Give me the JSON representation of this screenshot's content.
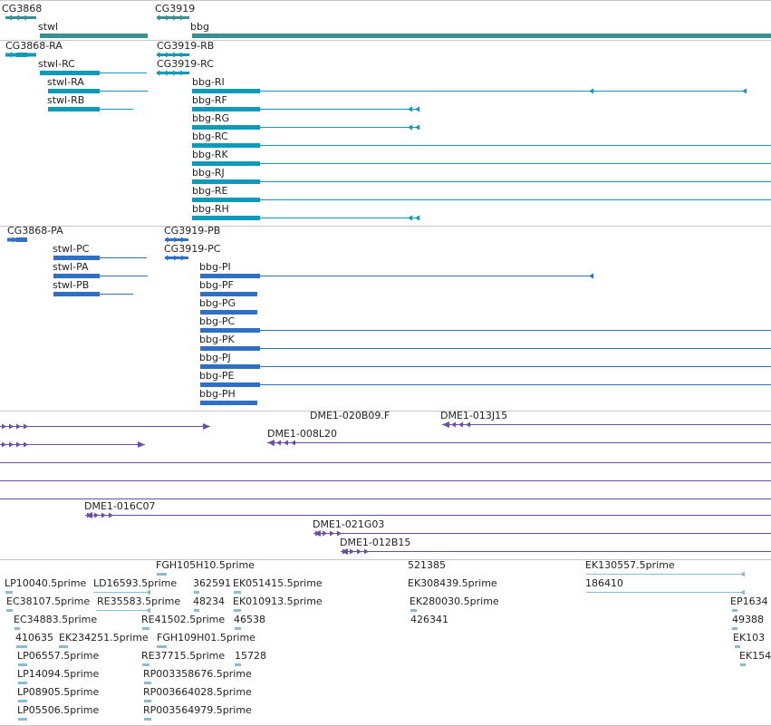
{
  "colors": {
    "gene": "#3a8f94",
    "transcript": "#0e9ab8",
    "protein": "#2f6fc6",
    "bac": "#6b4ea6",
    "est": "#86bcd6"
  },
  "tracks": [
    {
      "name": "genes",
      "color_key": "gene",
      "features": [
        {
          "label": "CG3868",
          "strand": "-",
          "segments": [
            {
              "x1": 6,
              "x2": 40,
              "h": 3
            }
          ]
        },
        {
          "label": "CG3919",
          "strand": "+",
          "segments": [
            {
              "x1": 173,
              "x2": 209,
              "h": 3
            }
          ]
        },
        {
          "label": "stwl",
          "strand": "+",
          "segments": [
            {
              "x1": 44,
              "x2": 163,
              "h": 5
            }
          ]
        },
        {
          "label": "bbg",
          "strand": "+",
          "segments": [
            {
              "x1": 212,
              "x2": 851,
              "h": 5
            }
          ]
        }
      ]
    },
    {
      "name": "transcripts",
      "color_key": "transcript",
      "features": [
        {
          "label": "CG3868-RA",
          "strand": "-",
          "segments": [
            {
              "x1": 6,
              "x2": 18,
              "h": 4
            },
            {
              "x1": 18,
              "x2": 30,
              "h": 5
            },
            {
              "x1": 30,
              "x2": 40,
              "h": 4
            }
          ]
        },
        {
          "label": "CG3919-RB",
          "strand": "+",
          "segments": [
            {
              "x1": 173,
              "x2": 209,
              "h": 3
            }
          ],
          "arrows": 4
        },
        {
          "label": "stwl-RC",
          "strand": "+",
          "segments": [
            {
              "x1": 44,
              "x2": 110,
              "h": 5
            },
            {
              "x1": 110,
              "x2": 162,
              "h": 1
            }
          ]
        },
        {
          "label": "CG3919-RC",
          "strand": "+",
          "segments": [
            {
              "x1": 173,
              "x2": 209,
              "h": 3
            }
          ],
          "arrows": 5
        },
        {
          "label": "stwl-RA",
          "strand": "+",
          "segments": [
            {
              "x1": 53,
              "x2": 110,
              "h": 5
            },
            {
              "x1": 110,
              "x2": 163,
              "h": 1
            }
          ]
        },
        {
          "label": "bbg-RI",
          "strand": "-",
          "segments": [
            {
              "x1": 212,
              "x2": 287,
              "h": 5
            },
            {
              "x1": 287,
              "x2": 820,
              "h": 1
            }
          ],
          "ticks": [
            650,
            819
          ]
        },
        {
          "label": "stwl-RB",
          "strand": "+",
          "segments": [
            {
              "x1": 53,
              "x2": 110,
              "h": 5
            },
            {
              "x1": 110,
              "x2": 147,
              "h": 1
            }
          ]
        },
        {
          "label": "bbg-RF",
          "strand": "-",
          "segments": [
            {
              "x1": 212,
              "x2": 287,
              "h": 5
            },
            {
              "x1": 287,
              "x2": 461,
              "h": 1
            }
          ],
          "ticks": [
            450,
            458
          ]
        },
        {
          "label": "bbg-RG",
          "strand": "-",
          "segments": [
            {
              "x1": 212,
              "x2": 287,
              "h": 5
            },
            {
              "x1": 287,
              "x2": 461,
              "h": 1
            }
          ],
          "ticks": [
            450,
            458
          ]
        },
        {
          "label": "bbg-RC",
          "strand": "-",
          "segments": [
            {
              "x1": 212,
              "x2": 287,
              "h": 5
            },
            {
              "x1": 287,
              "x2": 851,
              "h": 1
            }
          ]
        },
        {
          "label": "bbg-RK",
          "strand": "-",
          "segments": [
            {
              "x1": 212,
              "x2": 287,
              "h": 5
            },
            {
              "x1": 287,
              "x2": 851,
              "h": 1
            }
          ]
        },
        {
          "label": "bbg-RJ",
          "strand": "-",
          "segments": [
            {
              "x1": 212,
              "x2": 287,
              "h": 5
            },
            {
              "x1": 287,
              "x2": 851,
              "h": 1
            }
          ]
        },
        {
          "label": "bbg-RE",
          "strand": "-",
          "segments": [
            {
              "x1": 212,
              "x2": 287,
              "h": 5
            },
            {
              "x1": 287,
              "x2": 851,
              "h": 1
            }
          ]
        },
        {
          "label": "bbg-RH",
          "strand": "-",
          "segments": [
            {
              "x1": 212,
              "x2": 287,
              "h": 5
            },
            {
              "x1": 287,
              "x2": 461,
              "h": 1
            }
          ],
          "ticks": [
            450,
            458
          ]
        }
      ]
    },
    {
      "name": "proteins",
      "color_key": "protein",
      "features": [
        {
          "label": "CG3868-PA",
          "strand": "-",
          "segments": [
            {
              "x1": 8,
              "x2": 18,
              "h": 4
            },
            {
              "x1": 18,
              "x2": 30,
              "h": 5
            }
          ]
        },
        {
          "label": "CG3919-PB",
          "strand": "+",
          "segments": [
            {
              "x1": 182,
              "x2": 208,
              "h": 3
            }
          ],
          "arrows": 3
        },
        {
          "label": "stwl-PC",
          "strand": "+",
          "segments": [
            {
              "x1": 59,
              "x2": 110,
              "h": 5
            },
            {
              "x1": 110,
              "x2": 162,
              "h": 1
            }
          ]
        },
        {
          "label": "CG3919-PC",
          "strand": "+",
          "segments": [
            {
              "x1": 182,
              "x2": 208,
              "h": 3
            }
          ],
          "arrows": 4
        },
        {
          "label": "stwl-PA",
          "strand": "+",
          "segments": [
            {
              "x1": 59,
              "x2": 110,
              "h": 5
            },
            {
              "x1": 110,
              "x2": 163,
              "h": 1
            }
          ]
        },
        {
          "label": "bbg-PI",
          "strand": "-",
          "segments": [
            {
              "x1": 221,
              "x2": 287,
              "h": 5
            },
            {
              "x1": 287,
              "x2": 651,
              "h": 1
            }
          ],
          "ticks": [
            650
          ]
        },
        {
          "label": "stwl-PB",
          "strand": "+",
          "segments": [
            {
              "x1": 59,
              "x2": 110,
              "h": 5
            },
            {
              "x1": 110,
              "x2": 147,
              "h": 1
            }
          ]
        },
        {
          "label": "bbg-PF",
          "strand": "-",
          "segments": [
            {
              "x1": 221,
              "x2": 284,
              "h": 5
            }
          ]
        },
        {
          "label": "bbg-PG",
          "strand": "-",
          "segments": [
            {
              "x1": 221,
              "x2": 284,
              "h": 5
            }
          ]
        },
        {
          "label": "bbg-PC",
          "strand": "-",
          "segments": [
            {
              "x1": 221,
              "x2": 287,
              "h": 5
            },
            {
              "x1": 287,
              "x2": 851,
              "h": 1
            }
          ]
        },
        {
          "label": "bbg-PK",
          "strand": "-",
          "segments": [
            {
              "x1": 221,
              "x2": 287,
              "h": 5
            },
            {
              "x1": 287,
              "x2": 851,
              "h": 1
            }
          ]
        },
        {
          "label": "bbg-PJ",
          "strand": "-",
          "segments": [
            {
              "x1": 221,
              "x2": 287,
              "h": 5
            },
            {
              "x1": 287,
              "x2": 851,
              "h": 1
            }
          ]
        },
        {
          "label": "bbg-PE",
          "strand": "-",
          "segments": [
            {
              "x1": 221,
              "x2": 287,
              "h": 5
            },
            {
              "x1": 287,
              "x2": 851,
              "h": 1
            }
          ]
        },
        {
          "label": "bbg-PH",
          "strand": "-",
          "segments": [
            {
              "x1": 221,
              "x2": 284,
              "h": 5
            }
          ]
        }
      ]
    },
    {
      "name": "bac-clones",
      "color_key": "bac",
      "features": [
        {
          "label": "",
          "strand": "+",
          "segments": [
            {
              "x1": 0,
              "x2": 232,
              "h": 1
            }
          ],
          "end": "right"
        },
        {
          "label": "DME1-020B09.F",
          "strand": "",
          "segments": []
        },
        {
          "label": "DME1-013J15",
          "strand": "-",
          "segments": [
            {
              "x1": 488,
              "x2": 851,
              "h": 1
            }
          ],
          "end": "left"
        },
        {
          "label": "",
          "strand": "+",
          "segments": [
            {
              "x1": 0,
              "x2": 160,
              "h": 1
            }
          ],
          "end": "right"
        },
        {
          "label": "DME1-008L20",
          "strand": "-",
          "segments": [
            {
              "x1": 295,
              "x2": 851,
              "h": 1
            }
          ],
          "end": "left"
        },
        {
          "label": "",
          "strand": "",
          "segments": [
            {
              "x1": 0,
              "x2": 851,
              "h": 1
            }
          ]
        },
        {
          "label": "",
          "strand": "",
          "segments": [
            {
              "x1": 0,
              "x2": 851,
              "h": 1
            }
          ]
        },
        {
          "label": "",
          "strand": "",
          "segments": [
            {
              "x1": 0,
              "x2": 851,
              "h": 1
            }
          ]
        },
        {
          "label": "DME1-016C07",
          "strand": "+",
          "segments": [
            {
              "x1": 94,
              "x2": 851,
              "h": 1
            }
          ],
          "end": "left"
        },
        {
          "label": "DME1-021G03",
          "strand": "+",
          "segments": [
            {
              "x1": 346,
              "x2": 851,
              "h": 1
            }
          ],
          "end": "left"
        },
        {
          "label": "DME1-012B15",
          "strand": "+",
          "segments": [
            {
              "x1": 376,
              "x2": 851,
              "h": 1
            }
          ],
          "end": "left"
        }
      ]
    },
    {
      "name": "ests",
      "color_key": "est",
      "features": [
        {
          "label": "FGH105H10.5prime",
          "strand": "",
          "segments": [
            {
              "x1": 173,
              "x2": 184,
              "h": 3
            }
          ]
        },
        {
          "label": "521385",
          "strand": "",
          "segments": []
        },
        {
          "label": "EK130557.5prime",
          "strand": "",
          "segments": [
            {
              "x1": 647,
              "x2": 820,
              "h": 1
            }
          ],
          "ticks": [
            817
          ]
        },
        {
          "label": "LP10040.5prime",
          "strand": "",
          "segments": [
            {
              "x1": 6,
              "x2": 14,
              "h": 3
            }
          ]
        },
        {
          "label": "LD16593.5prime",
          "strand": "",
          "segments": [
            {
              "x1": 103,
              "x2": 165,
              "h": 1
            }
          ],
          "ticks": [
            161
          ]
        },
        {
          "label": "362591",
          "strand": "",
          "segments": [
            {
              "x1": 214,
              "x2": 220,
              "h": 3
            }
          ]
        },
        {
          "label": "EK051415.5prime",
          "strand": "",
          "segments": [
            {
              "x1": 258,
              "x2": 266,
              "h": 3
            }
          ]
        },
        {
          "label": "EK308439.5prime",
          "strand": "",
          "segments": []
        },
        {
          "label": "186410",
          "strand": "",
          "segments": [
            {
              "x1": 647,
              "x2": 820,
              "h": 1
            }
          ],
          "ticks": [
            817
          ]
        },
        {
          "label": "EC38107.5prime",
          "strand": "",
          "segments": [
            {
              "x1": 7,
              "x2": 14,
              "h": 3
            }
          ]
        },
        {
          "label": "RE35583.5prime",
          "strand": "",
          "segments": [
            {
              "x1": 106,
              "x2": 165,
              "h": 1
            }
          ],
          "ticks": [
            161
          ]
        },
        {
          "label": "48234",
          "strand": "",
          "segments": [
            {
              "x1": 214,
              "x2": 220,
              "h": 3
            }
          ]
        },
        {
          "label": "EK010913.5prime",
          "strand": "",
          "segments": [
            {
              "x1": 258,
              "x2": 266,
              "h": 3
            }
          ]
        },
        {
          "label": "EK280030.5prime",
          "strand": "",
          "segments": [
            {
              "x1": 453,
              "x2": 460,
              "h": 3
            }
          ]
        },
        {
          "label": "EP1634",
          "strand": "",
          "segments": [
            {
              "x1": 808,
              "x2": 814,
              "h": 3
            }
          ]
        },
        {
          "label": "EC34883.5prime",
          "strand": "",
          "segments": [
            {
              "x1": 16,
              "x2": 22,
              "h": 3
            }
          ]
        },
        {
          "label": "RE41502.5prime",
          "strand": "",
          "segments": [
            {
              "x1": 157,
              "x2": 165,
              "h": 3
            }
          ]
        },
        {
          "label": "46538",
          "strand": "",
          "segments": [
            {
              "x1": 259,
              "x2": 266,
              "h": 3
            }
          ]
        },
        {
          "label": "426341",
          "strand": "",
          "segments": []
        },
        {
          "label": "49388",
          "strand": "",
          "segments": [
            {
              "x1": 808,
              "x2": 814,
              "h": 3
            }
          ]
        },
        {
          "label": "410635",
          "strand": "",
          "segments": [
            {
              "x1": 18,
              "x2": 30,
              "h": 3
            }
          ]
        },
        {
          "label": "EK234251.5prime",
          "strand": "",
          "segments": [
            {
              "x1": 65,
              "x2": 75,
              "h": 3
            }
          ]
        },
        {
          "label": "FGH109H01.5prime",
          "strand": "",
          "segments": [
            {
              "x1": 173,
              "x2": 184,
              "h": 3
            }
          ]
        },
        {
          "label": "EK103",
          "strand": "",
          "segments": [
            {
              "x1": 811,
              "x2": 817,
              "h": 3
            }
          ]
        },
        {
          "label": "LP06557.5prime",
          "strand": "",
          "segments": [
            {
              "x1": 20,
              "x2": 30,
              "h": 3
            }
          ]
        },
        {
          "label": "RE37715.5prime",
          "strand": "",
          "segments": [
            {
              "x1": 157,
              "x2": 165,
              "h": 3
            }
          ]
        },
        {
          "label": "15728",
          "strand": "",
          "segments": [
            {
              "x1": 259,
              "x2": 266,
              "h": 3
            }
          ]
        },
        {
          "label": "EK154",
          "strand": "",
          "segments": [
            {
              "x1": 817,
              "x2": 823,
              "h": 3
            }
          ]
        },
        {
          "label": "LP14094.5prime",
          "strand": "",
          "segments": [
            {
              "x1": 20,
              "x2": 30,
              "h": 3
            }
          ]
        },
        {
          "label": "RP003358676.5prime",
          "strand": "",
          "segments": [
            {
              "x1": 159,
              "x2": 167,
              "h": 3
            }
          ]
        },
        {
          "label": "LP08905.5prime",
          "strand": "",
          "segments": [
            {
              "x1": 20,
              "x2": 30,
              "h": 3
            }
          ]
        },
        {
          "label": "RP003664028.5prime",
          "strand": "",
          "segments": [
            {
              "x1": 159,
              "x2": 167,
              "h": 3
            }
          ]
        },
        {
          "label": "LP05506.5prime",
          "strand": "",
          "segments": [
            {
              "x1": 20,
              "x2": 30,
              "h": 3
            }
          ]
        },
        {
          "label": "RP003564979.5prime",
          "strand": "",
          "segments": [
            {
              "x1": 159,
              "x2": 167,
              "h": 3
            }
          ]
        }
      ]
    }
  ]
}
